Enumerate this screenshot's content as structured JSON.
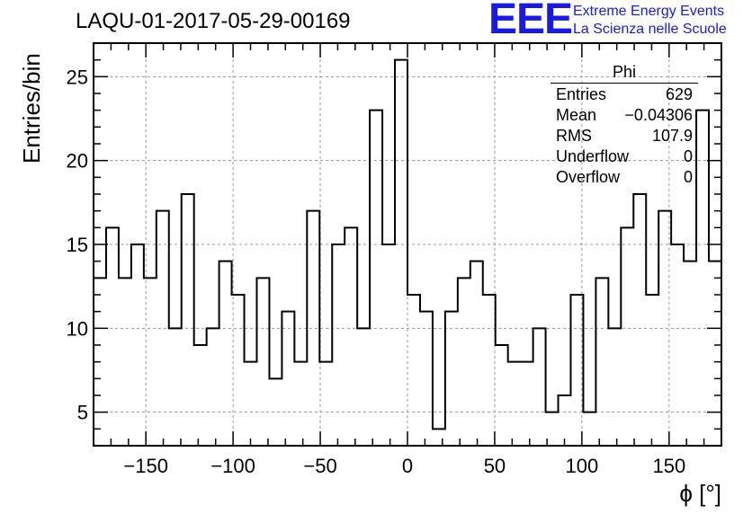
{
  "title": "LAQU-01-2017-05-29-00169",
  "logo": {
    "mark": "EEE",
    "line1": "Extreme Energy Events",
    "line2": "La Scienza nelle Scuole",
    "color": "#1a1ae6"
  },
  "stats_box": {
    "name": "Phi",
    "rows": [
      {
        "label": "Entries",
        "value": "629"
      },
      {
        "label": "Mean",
        "value": "−0.04306"
      },
      {
        "label": "RMS",
        "value": "107.9"
      },
      {
        "label": "Underflow",
        "value": "0"
      },
      {
        "label": "Overflow",
        "value": "0"
      }
    ]
  },
  "chart_data": {
    "type": "histogram",
    "xlabel": "ϕ [°]",
    "ylabel": "Entries/bin",
    "xlim": [
      -180,
      180
    ],
    "ylim": [
      3,
      27
    ],
    "bin_edges_start": -180,
    "bin_width": 7.2,
    "values": [
      13,
      16,
      13,
      15,
      13,
      17,
      10,
      18,
      9,
      10,
      14,
      12,
      8,
      13,
      7,
      11,
      8,
      17,
      8,
      15,
      16,
      10,
      23,
      15,
      26,
      12,
      11,
      4,
      11,
      13,
      14,
      12,
      9,
      8,
      8,
      10,
      5,
      6,
      12,
      5,
      13,
      10,
      16,
      18,
      12,
      17,
      15,
      14,
      23,
      14
    ],
    "x_ticks": [
      -150,
      -100,
      -50,
      0,
      50,
      100,
      150
    ],
    "x_tick_labels": [
      "−150",
      "−100",
      "−50",
      "0",
      "50",
      "100",
      "150"
    ],
    "y_ticks": [
      5,
      10,
      15,
      20,
      25
    ],
    "y_tick_labels": [
      "5",
      "10",
      "15",
      "20",
      "25"
    ],
    "grid": true,
    "line_color": "#000000"
  }
}
